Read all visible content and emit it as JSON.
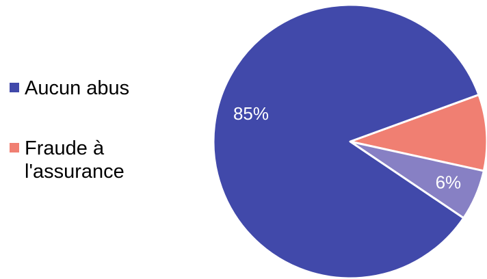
{
  "chart_data": {
    "type": "pie",
    "series": [
      {
        "name": "Aucun abus",
        "value": 85,
        "label": "85%",
        "color": "#4149AA"
      },
      {
        "name": "Fraude à l'assurance",
        "value": 9,
        "label": "",
        "color": "#F07F72"
      },
      {
        "name": "",
        "value": 6,
        "label": "6%",
        "color": "#8780C4"
      }
    ],
    "legend": {
      "position": "left",
      "entries": [
        {
          "label": "Aucun abus",
          "color": "#4149AA"
        },
        {
          "label": "Fraude à\nl'assurance",
          "color": "#F07F72"
        }
      ]
    },
    "slice_border_color": "#ffffff"
  }
}
